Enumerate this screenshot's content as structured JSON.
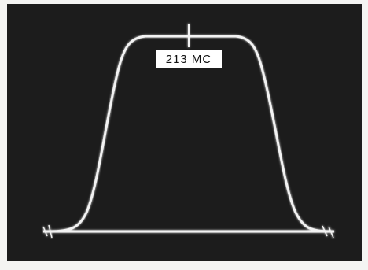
{
  "label": "213 MC"
}
